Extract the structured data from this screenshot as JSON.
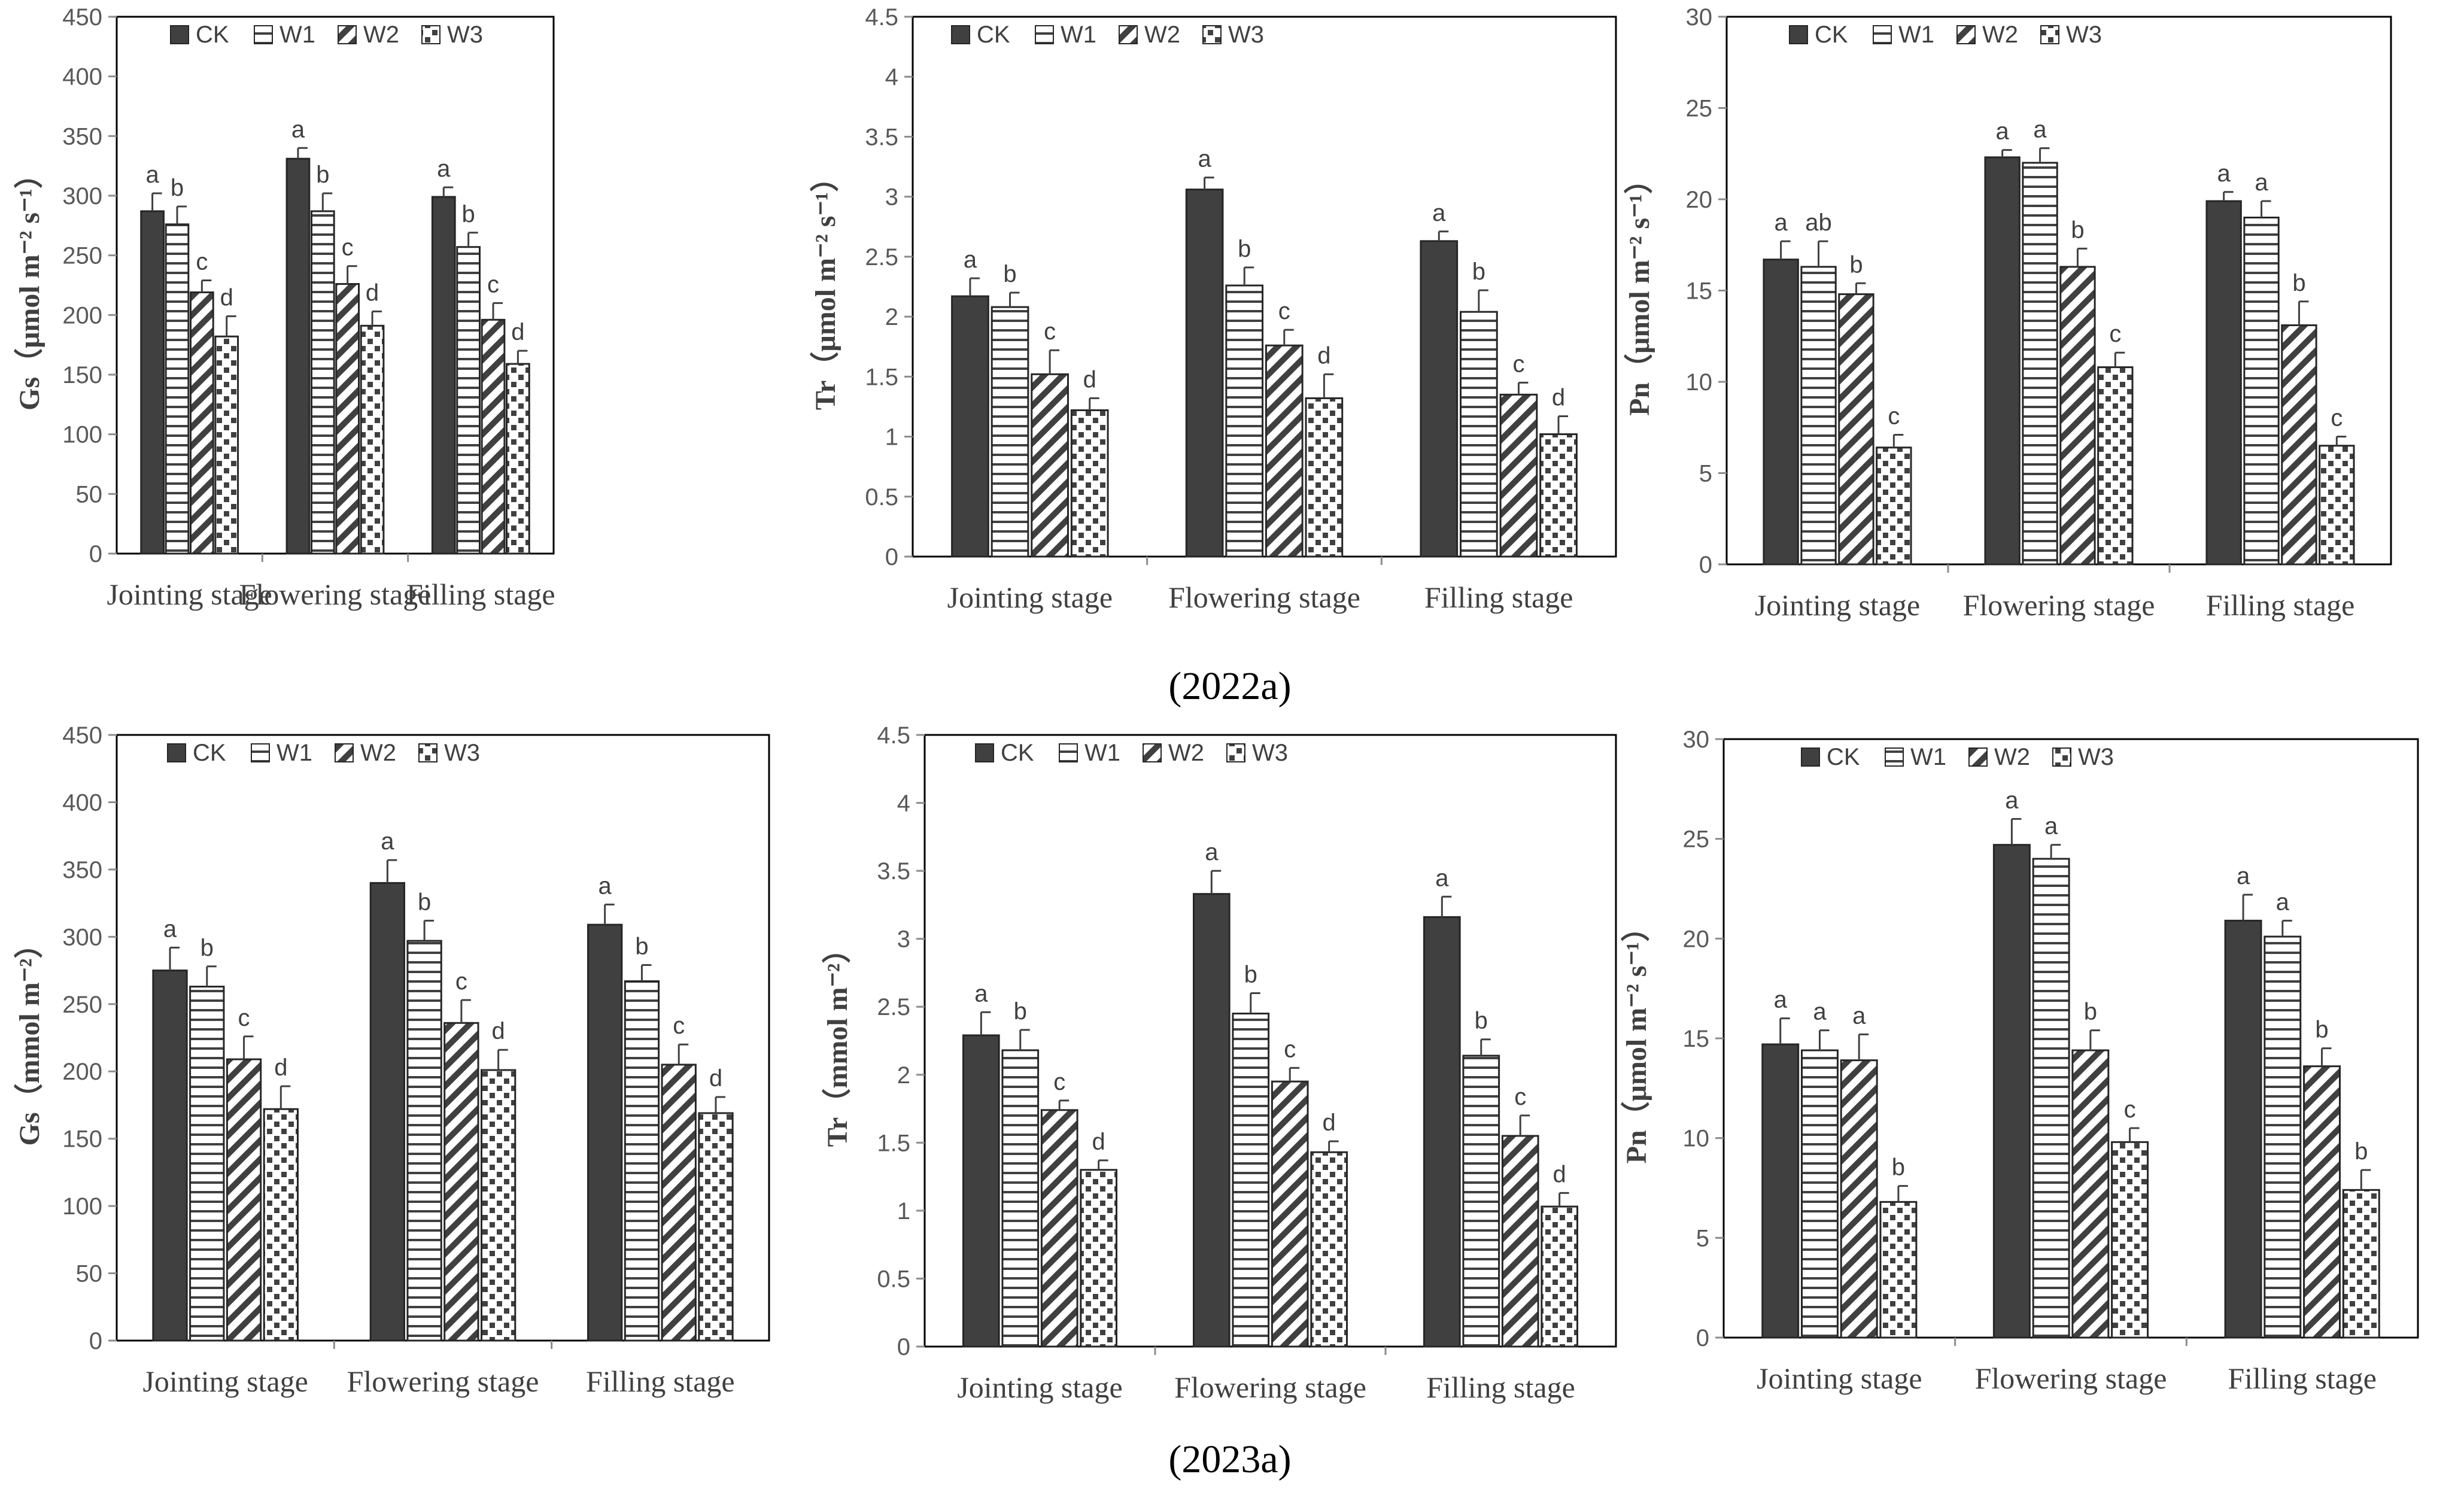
{
  "captions": [
    "(2022a)",
    "(2023a)"
  ],
  "legend": [
    "CK",
    "W1",
    "W2",
    "W3"
  ],
  "colors": {
    "ck": "#404040",
    "frame": "#000000",
    "axis": "#8c8c8c",
    "errbar": "#404040"
  },
  "chart_data": [
    {
      "type": "bar",
      "title": "",
      "ylabel": "Gs（μmol m⁻² s⁻¹）",
      "ylim": [
        0,
        450
      ],
      "yticks": [
        0,
        50,
        100,
        150,
        200,
        250,
        300,
        350,
        400,
        450
      ],
      "categories": [
        "Jointing stage",
        "Flowering stage",
        "Filling stage"
      ],
      "series": [
        {
          "name": "CK",
          "values": [
            287,
            331,
            299
          ],
          "errors": [
            15,
            9,
            8
          ],
          "letters": [
            "a",
            "a",
            "a"
          ]
        },
        {
          "name": "W1",
          "values": [
            276,
            287,
            257
          ],
          "errors": [
            15,
            15,
            12
          ],
          "letters": [
            "b",
            "b",
            "b"
          ]
        },
        {
          "name": "W2",
          "values": [
            219,
            226,
            196
          ],
          "errors": [
            10,
            15,
            14
          ],
          "letters": [
            "c",
            "c",
            "c"
          ]
        },
        {
          "name": "W3",
          "values": [
            182,
            191,
            159
          ],
          "errors": [
            17,
            12,
            11
          ],
          "letters": [
            "d",
            "d",
            "d"
          ]
        }
      ]
    },
    {
      "type": "bar",
      "title": "",
      "ylabel": "Tr（μmol m⁻² s⁻¹）",
      "ylim": [
        0,
        4.5
      ],
      "yticks": [
        "0",
        "0.5",
        "1",
        "1.5",
        "2",
        "2.5",
        "3",
        "3.5",
        "4",
        "4.5"
      ],
      "categories": [
        "Jointing stage",
        "Flowering stage",
        "Filling stage"
      ],
      "series": [
        {
          "name": "CK",
          "values": [
            2.17,
            3.06,
            2.63
          ],
          "errors": [
            0.15,
            0.1,
            0.08
          ],
          "letters": [
            "a",
            "a",
            "a"
          ]
        },
        {
          "name": "W1",
          "values": [
            2.08,
            2.26,
            2.04
          ],
          "errors": [
            0.12,
            0.15,
            0.18
          ],
          "letters": [
            "b",
            "b",
            "b"
          ]
        },
        {
          "name": "W2",
          "values": [
            1.52,
            1.76,
            1.35
          ],
          "errors": [
            0.2,
            0.13,
            0.1
          ],
          "letters": [
            "c",
            "c",
            "c"
          ]
        },
        {
          "name": "W3",
          "values": [
            1.22,
            1.32,
            1.02
          ],
          "errors": [
            0.1,
            0.2,
            0.15
          ],
          "letters": [
            "d",
            "d",
            "d"
          ]
        }
      ]
    },
    {
      "type": "bar",
      "title": "",
      "ylabel": "Pn（μmol m⁻² s⁻¹）",
      "ylim": [
        0,
        30
      ],
      "yticks": [
        0,
        5,
        10,
        15,
        20,
        25,
        30
      ],
      "categories": [
        "Jointing stage",
        "Flowering stage",
        "Filling stage"
      ],
      "series": [
        {
          "name": "CK",
          "values": [
            16.7,
            22.3,
            19.9
          ],
          "errors": [
            1.0,
            0.4,
            0.5
          ],
          "letters": [
            "a",
            "a",
            "a"
          ]
        },
        {
          "name": "W1",
          "values": [
            16.3,
            22.0,
            19.0
          ],
          "errors": [
            1.4,
            0.8,
            0.9
          ],
          "letters": [
            "ab",
            "a",
            "a"
          ]
        },
        {
          "name": "W2",
          "values": [
            14.8,
            16.3,
            13.1
          ],
          "errors": [
            0.6,
            1.0,
            1.3
          ],
          "letters": [
            "b",
            "b",
            "b"
          ]
        },
        {
          "name": "W3",
          "values": [
            6.4,
            10.8,
            6.5
          ],
          "errors": [
            0.7,
            0.8,
            0.5
          ],
          "letters": [
            "c",
            "c",
            "c"
          ]
        }
      ]
    },
    {
      "type": "bar",
      "title": "",
      "ylabel": "Gs（mmol m⁻²）",
      "ylim": [
        0,
        450
      ],
      "yticks": [
        0,
        50,
        100,
        150,
        200,
        250,
        300,
        350,
        400,
        450
      ],
      "categories": [
        "Jointing stage",
        "Flowering stage",
        "Filling stage"
      ],
      "series": [
        {
          "name": "CK",
          "values": [
            275,
            340,
            309
          ],
          "errors": [
            17,
            17,
            15
          ],
          "letters": [
            "a",
            "a",
            "a"
          ]
        },
        {
          "name": "W1",
          "values": [
            263,
            297,
            267
          ],
          "errors": [
            15,
            15,
            12
          ],
          "letters": [
            "b",
            "b",
            "b"
          ]
        },
        {
          "name": "W2",
          "values": [
            209,
            236,
            205
          ],
          "errors": [
            17,
            17,
            15
          ],
          "letters": [
            "c",
            "c",
            "c"
          ]
        },
        {
          "name": "W3",
          "values": [
            172,
            201,
            169
          ],
          "errors": [
            17,
            15,
            12
          ],
          "letters": [
            "d",
            "d",
            "d"
          ]
        }
      ]
    },
    {
      "type": "bar",
      "title": "",
      "ylabel": "Tr（mmol m⁻²）",
      "ylim": [
        0,
        4.5
      ],
      "yticks": [
        "0",
        "0.5",
        "1",
        "1.5",
        "2",
        "2.5",
        "3",
        "3.5",
        "4",
        "4.5"
      ],
      "categories": [
        "Jointing stage",
        "Flowering stage",
        "Filling stage"
      ],
      "series": [
        {
          "name": "CK",
          "values": [
            2.29,
            3.33,
            3.16
          ],
          "errors": [
            0.17,
            0.17,
            0.15
          ],
          "letters": [
            "a",
            "a",
            "a"
          ]
        },
        {
          "name": "W1",
          "values": [
            2.18,
            2.45,
            2.14
          ],
          "errors": [
            0.15,
            0.15,
            0.12
          ],
          "letters": [
            "b",
            "b",
            "b"
          ]
        },
        {
          "name": "W2",
          "values": [
            1.74,
            1.95,
            1.55
          ],
          "errors": [
            0.07,
            0.1,
            0.15
          ],
          "letters": [
            "c",
            "c",
            "c"
          ]
        },
        {
          "name": "W3",
          "values": [
            1.3,
            1.43,
            1.03
          ],
          "errors": [
            0.07,
            0.08,
            0.1
          ],
          "letters": [
            "d",
            "d",
            "d"
          ]
        }
      ]
    },
    {
      "type": "bar",
      "title": "",
      "ylabel": "Pn（μmol m⁻² s⁻¹）",
      "ylim": [
        0,
        30
      ],
      "yticks": [
        0,
        5,
        10,
        15,
        20,
        25,
        30
      ],
      "categories": [
        "Jointing stage",
        "Flowering stage",
        "Filling stage"
      ],
      "series": [
        {
          "name": "CK",
          "values": [
            14.7,
            24.7,
            20.9
          ],
          "errors": [
            1.3,
            1.3,
            1.3
          ],
          "letters": [
            "a",
            "a",
            "a"
          ]
        },
        {
          "name": "W1",
          "values": [
            14.4,
            24.0,
            20.1
          ],
          "errors": [
            1.0,
            0.7,
            0.8
          ],
          "letters": [
            "a",
            "a",
            "a"
          ]
        },
        {
          "name": "W2",
          "values": [
            13.9,
            14.4,
            13.6
          ],
          "errors": [
            1.3,
            1.0,
            0.9
          ],
          "letters": [
            "a",
            "b",
            "b"
          ]
        },
        {
          "name": "W3",
          "values": [
            6.8,
            9.8,
            7.4
          ],
          "errors": [
            0.8,
            0.7,
            1.0
          ],
          "letters": [
            "b",
            "c",
            "b"
          ]
        }
      ]
    }
  ]
}
